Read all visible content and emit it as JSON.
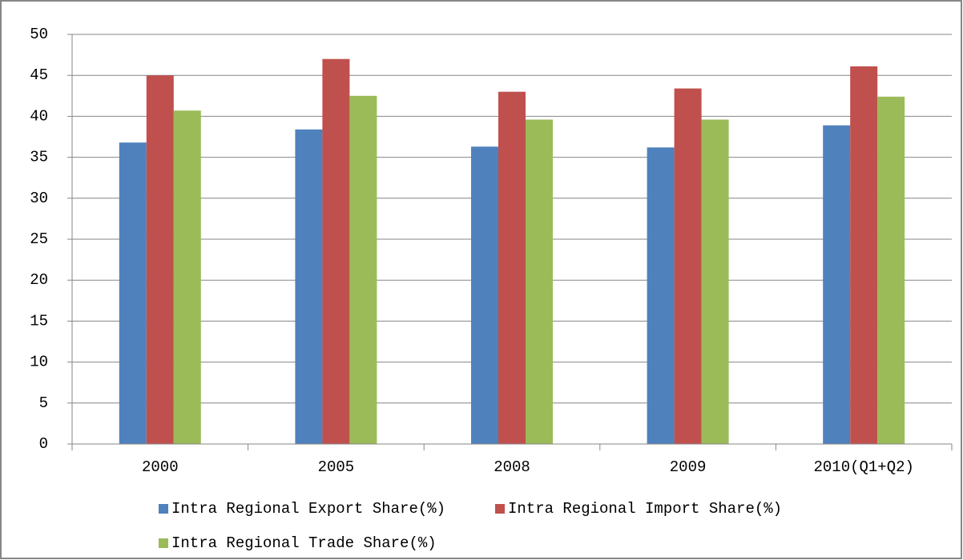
{
  "chart_data": {
    "type": "bar",
    "categories": [
      "2000",
      "2005",
      "2008",
      "2009",
      "2010(Q1+Q2)"
    ],
    "series": [
      {
        "name": "Intra Regional Export Share(%)",
        "color": "#4f81bd",
        "values": [
          36.8,
          38.4,
          36.3,
          36.2,
          38.9
        ]
      },
      {
        "name": "Intra Regional Import Share(%)",
        "color": "#c0504d",
        "values": [
          45.0,
          47.0,
          43.0,
          43.4,
          46.1
        ]
      },
      {
        "name": "Intra Regional Trade Share(%)",
        "color": "#9bbb59",
        "values": [
          40.7,
          42.5,
          39.6,
          39.6,
          42.4
        ]
      }
    ],
    "ylim": [
      0,
      50
    ],
    "yticks": [
      0,
      5,
      10,
      15,
      20,
      25,
      30,
      35,
      40,
      45,
      50
    ],
    "grid": true,
    "legend": "bottom"
  }
}
